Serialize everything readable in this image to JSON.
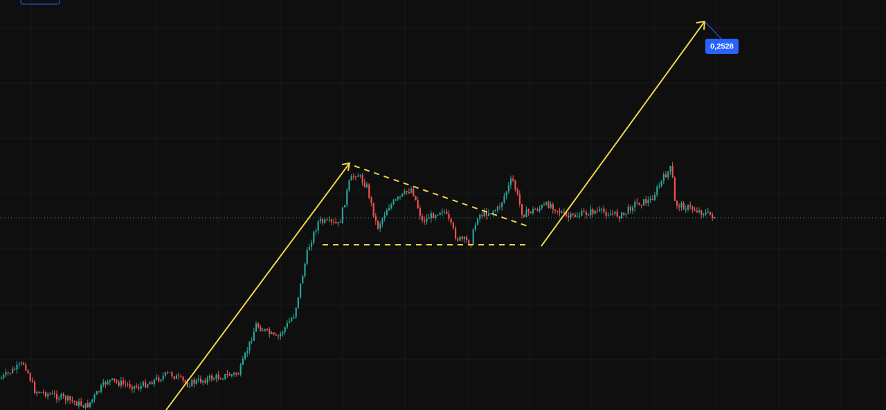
{
  "price_label": "0,2528"
}
